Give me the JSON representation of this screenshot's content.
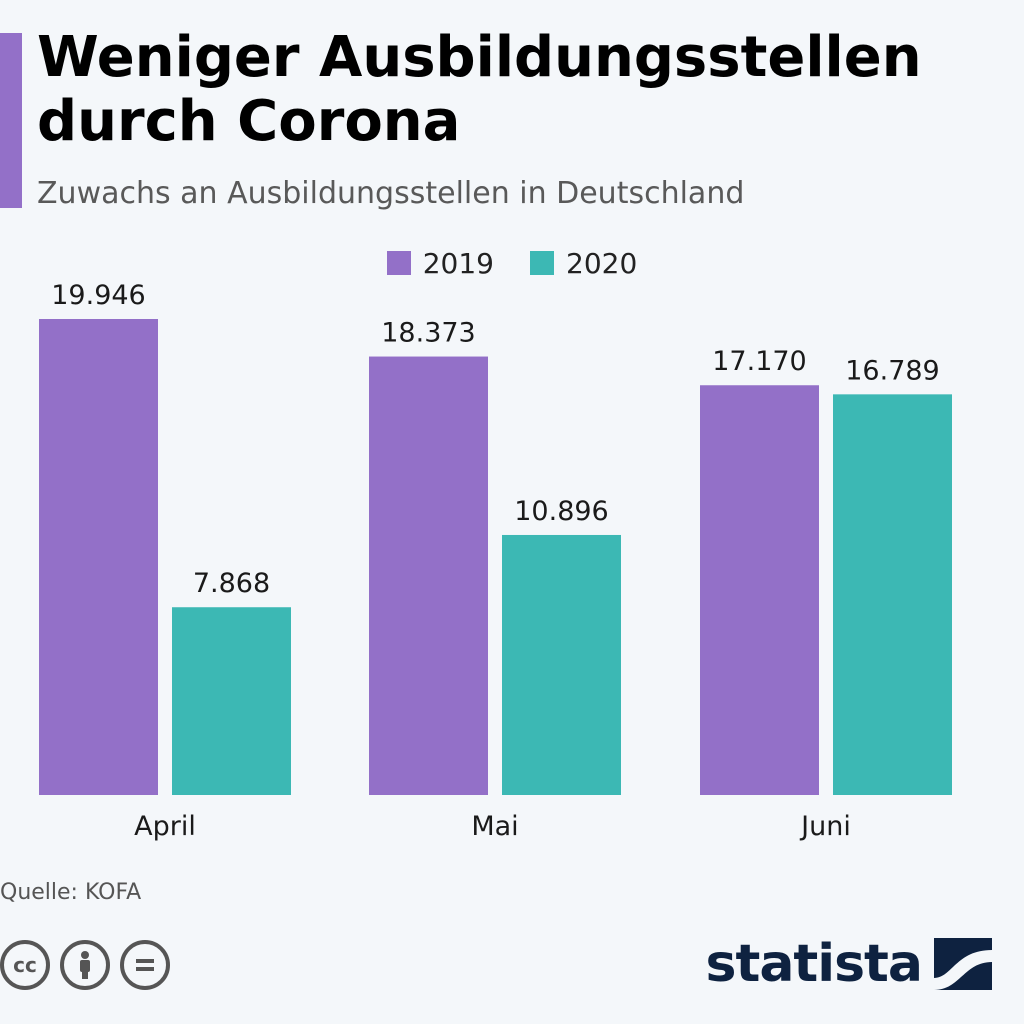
{
  "header": {
    "title": "Weniger Ausbildungsstellen durch Corona",
    "subtitle": "Zuwachs an Ausbildungsstellen in Deutschland"
  },
  "colors": {
    "accent": "#9370c8",
    "series_2019": "#9370c8",
    "series_2020": "#3cb8b4",
    "brand": "#0e2240"
  },
  "chart_data": {
    "type": "bar",
    "categories": [
      "April",
      "Mai",
      "Juni"
    ],
    "series": [
      {
        "name": "2019",
        "values": [
          19946,
          18373,
          17170
        ],
        "labels": [
          "19.946",
          "18.373",
          "17.170"
        ]
      },
      {
        "name": "2020",
        "values": [
          7868,
          10896,
          16789
        ],
        "labels": [
          "7.868",
          "10.896",
          "16.789"
        ]
      }
    ],
    "title": "Weniger Ausbildungsstellen durch Corona",
    "subtitle": "Zuwachs an Ausbildungsstellen in Deutschland",
    "legend_position": "top-center",
    "grid": false,
    "ylim": [
      0,
      19946
    ]
  },
  "footer": {
    "source": "Quelle: KOFA",
    "brand": "statista",
    "license_icons": [
      "cc-icon",
      "by-icon",
      "nd-icon"
    ]
  }
}
